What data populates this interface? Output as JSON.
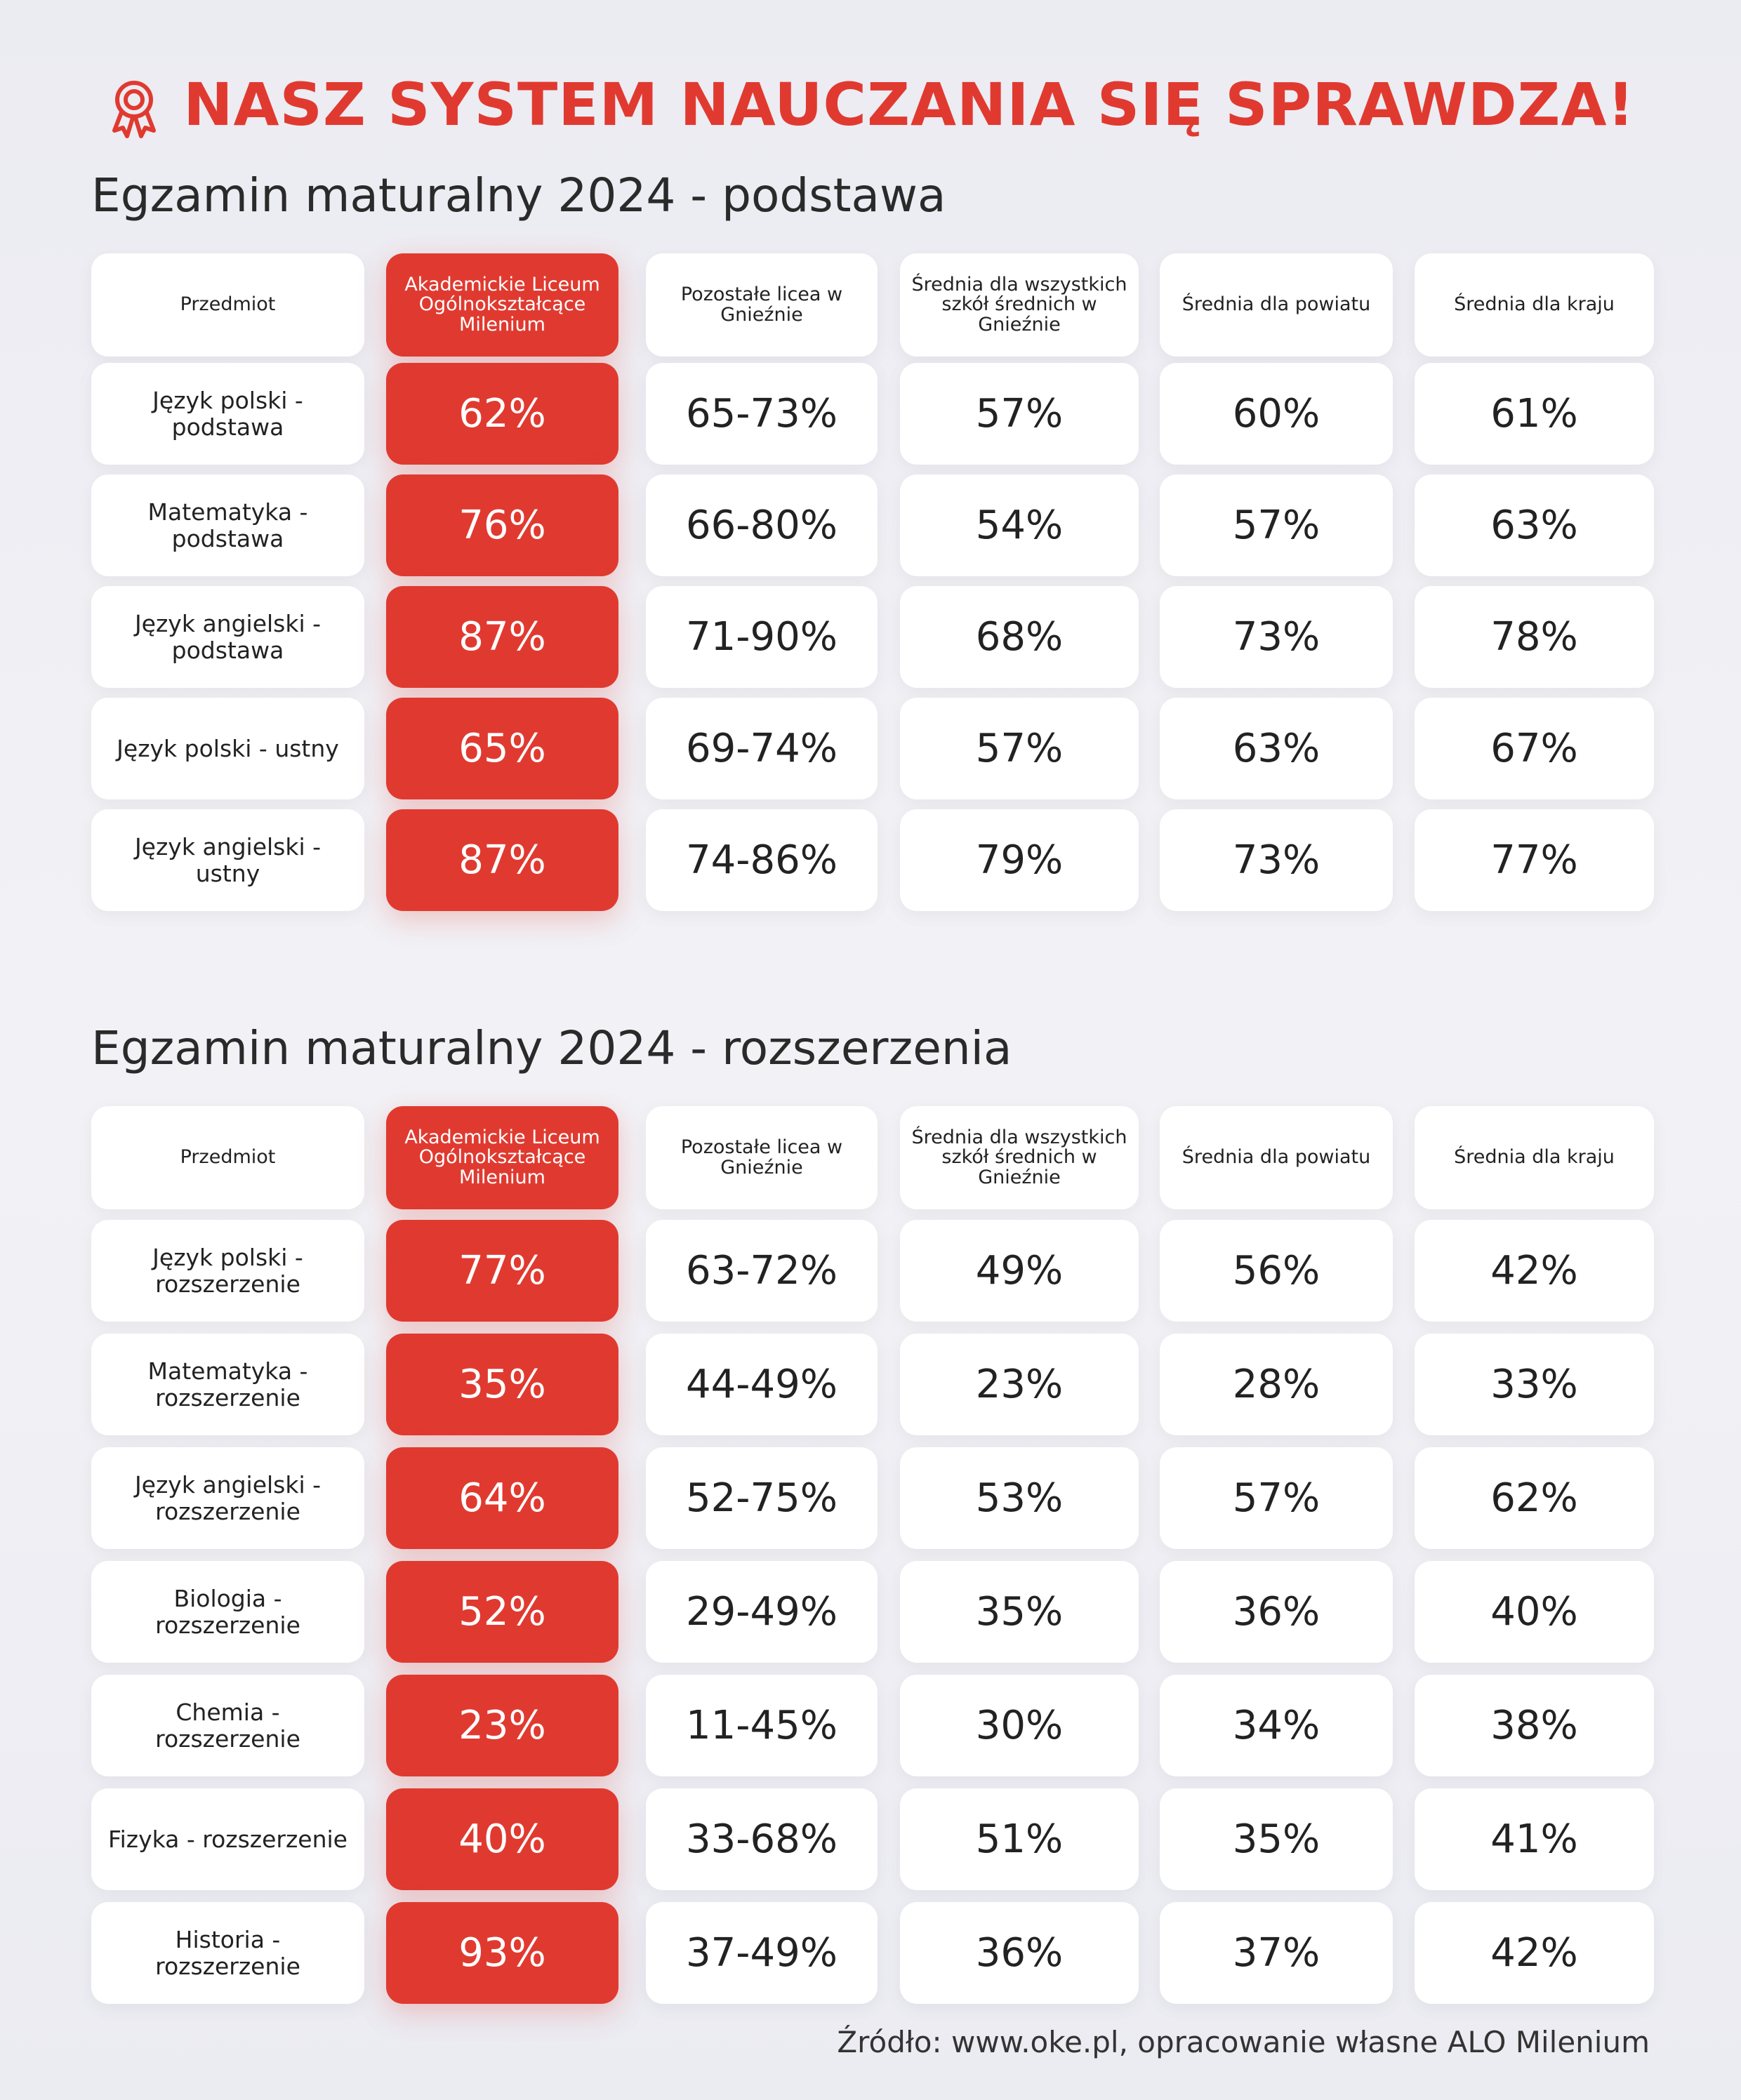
{
  "header": {
    "title": "NASZ SYSTEM NAUCZANIA SIĘ SPRAWDZA!"
  },
  "sections": [
    {
      "heading": "Egzamin maturalny 2024 - podstawa",
      "columns": [
        "Przedmiot",
        "Akademickie Liceum Ogólnokształcące Milenium",
        "Pozostałe licea w Gnieźnie",
        "Średnia dla wszystkich szkół średnich w Gnieźnie",
        "Średnia dla powiatu",
        "Średnia dla kraju"
      ],
      "rows": [
        [
          "Język polski - podstawa",
          "62%",
          "65-73%",
          "57%",
          "60%",
          "61%"
        ],
        [
          "Matematyka - podstawa",
          "76%",
          "66-80%",
          "54%",
          "57%",
          "63%"
        ],
        [
          "Język angielski - podstawa",
          "87%",
          "71-90%",
          "68%",
          "73%",
          "78%"
        ],
        [
          "Język polski - ustny",
          "65%",
          "69-74%",
          "57%",
          "63%",
          "67%"
        ],
        [
          "Język angielski - ustny",
          "87%",
          "74-86%",
          "79%",
          "73%",
          "77%"
        ]
      ]
    },
    {
      "heading": "Egzamin maturalny 2024 - rozszerzenia",
      "columns": [
        "Przedmiot",
        "Akademickie Liceum Ogólnokształcące Milenium",
        "Pozostałe licea w Gnieźnie",
        "Średnia dla wszystkich szkół średnich w Gnieźnie",
        "Średnia dla powiatu",
        "Średnia dla kraju"
      ],
      "rows": [
        [
          "Język polski - rozszerzenie",
          "77%",
          "63-72%",
          "49%",
          "56%",
          "42%"
        ],
        [
          "Matematyka - rozszerzenie",
          "35%",
          "44-49%",
          "23%",
          "28%",
          "33%"
        ],
        [
          "Język angielski - rozszerzenie",
          "64%",
          "52-75%",
          "53%",
          "57%",
          "62%"
        ],
        [
          "Biologia - rozszerzenie",
          "52%",
          "29-49%",
          "35%",
          "36%",
          "40%"
        ],
        [
          "Chemia - rozszerzenie",
          "23%",
          "11-45%",
          "30%",
          "34%",
          "38%"
        ],
        [
          "Fizyka - rozszerzenie",
          "40%",
          "33-68%",
          "51%",
          "35%",
          "41%"
        ],
        [
          "Historia - rozszerzenie",
          "93%",
          "37-49%",
          "36%",
          "37%",
          "42%"
        ]
      ]
    }
  ],
  "footer": {
    "source": "Źródło: www.oke.pl, opracowanie własne ALO Milenium"
  }
}
